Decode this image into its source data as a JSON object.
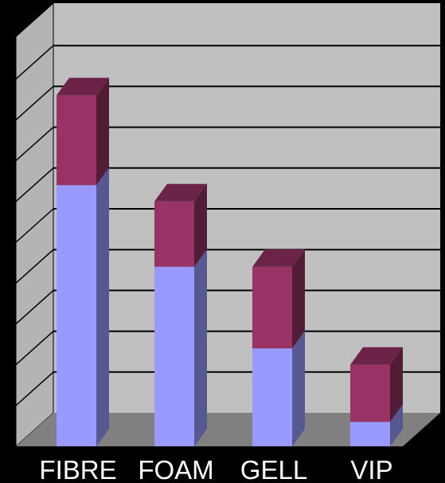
{
  "chart_data": {
    "type": "bar",
    "stacked": true,
    "three_d": true,
    "categories": [
      "FIBRE",
      "FOAM",
      "GELL",
      "VIP"
    ],
    "series": [
      {
        "values": [
          64,
          44,
          24,
          6
        ],
        "color": "#9999ff",
        "side_color": "#575792",
        "top_color": "#9999ff"
      },
      {
        "values": [
          22,
          16,
          20,
          14
        ],
        "color": "#993366",
        "side_color": "#511c35",
        "top_color": "#6b2447"
      }
    ],
    "ylim": [
      0,
      100
    ],
    "grid": true,
    "legend": "none",
    "colors": {
      "background": "#000000",
      "wall": "#c0c0c0",
      "side_wall": "#b4b4b4",
      "floor": "#808080",
      "gridline": "#000000",
      "label": "#ffffff"
    }
  }
}
